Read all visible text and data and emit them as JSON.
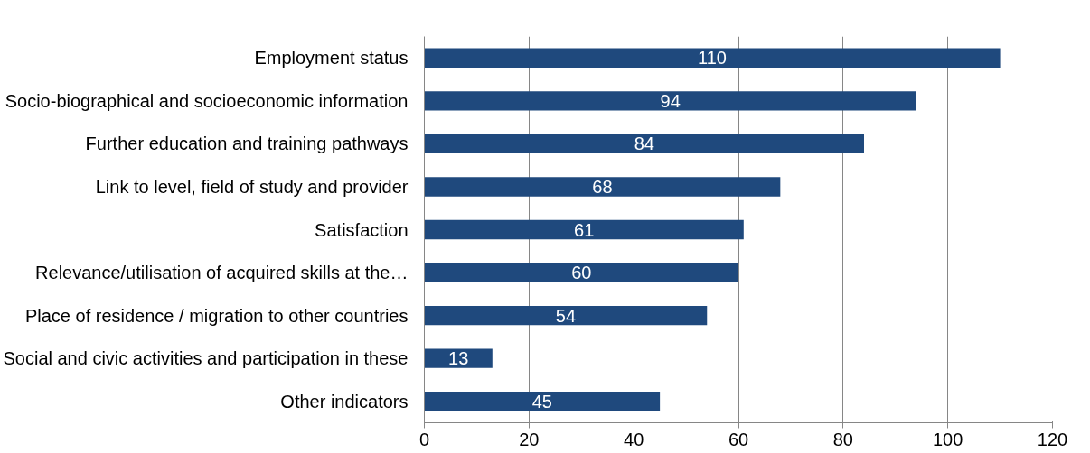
{
  "chart_data": {
    "type": "bar",
    "orientation": "horizontal",
    "categories": [
      "Employment status",
      "Socio-biographical and socioeconomic information",
      "Further education and training pathways",
      "Link to level, field of study and provider",
      "Satisfaction",
      "Relevance/utilisation of acquired skills at the…",
      "Place of residence / migration to other countries",
      "Social and civic activities and participation in these",
      "Other indicators"
    ],
    "values": [
      110,
      94,
      84,
      68,
      61,
      60,
      54,
      13,
      45
    ],
    "color": "#1f497d",
    "xlim": [
      0,
      120
    ],
    "xticks": [
      0,
      20,
      40,
      60,
      80,
      100,
      120
    ],
    "grid": "x",
    "data_labels": true
  }
}
